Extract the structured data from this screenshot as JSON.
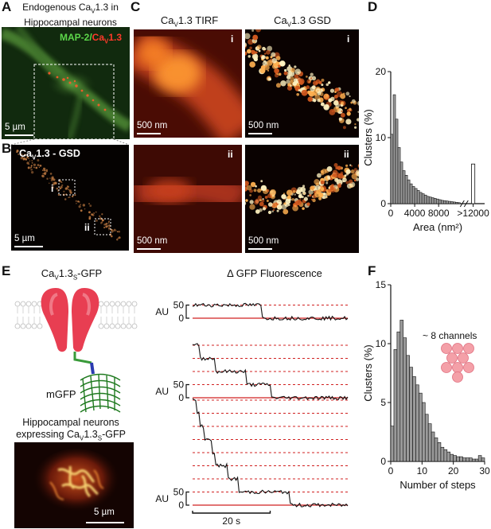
{
  "panel_letters": {
    "A": "A",
    "B": "B",
    "C": "C",
    "D": "D",
    "E": "E",
    "F": "F"
  },
  "panelA": {
    "title_pre": "Endogenous Ca",
    "title_sub": "V",
    "title_post": "1.3 in",
    "title_line2": "Hippocampal neurons",
    "label_green": "MAP-2/",
    "label_red_pre": "Ca",
    "label_red_sub": "V",
    "label_red_post": "1.3",
    "scalebar": "5 µm"
  },
  "panelB": {
    "label_pre": "Ca",
    "label_sub": "V",
    "label_post": "1.3 - GSD",
    "roi_i": "i",
    "roi_ii": "ii",
    "scalebar": "5 µm"
  },
  "panelC": {
    "col1_pre": "Ca",
    "col1_sub": "V",
    "col1_post": "1.3 TIRF",
    "col2_pre": "Ca",
    "col2_sub": "V",
    "col2_post": "1.3 GSD",
    "roman_i": "i",
    "roman_ii": "ii",
    "scalebar": "500 nm"
  },
  "panelE": {
    "title_pre": "Ca",
    "title_sub": "V",
    "title_mid": "1.3",
    "title_sub2": "S",
    "title_post": "-GFP",
    "mgfp": "mGFP",
    "neurons_line1": "Hippocampal neurons",
    "neurons_pre": "expressing Ca",
    "neurons_sub": "V",
    "neurons_mid": "1.3",
    "neurons_sub2": "S",
    "neurons_post": "-GFP",
    "scalebar": "5 µm",
    "traces_title": "Δ GFP Fluorescence",
    "au": "AU",
    "tick50": "50",
    "tick0": "0",
    "time_scale": "20 s"
  },
  "chart_data": [
    {
      "id": "panelD",
      "type": "bar",
      "ylabel": "Clusters (%)",
      "xlabel": "Area (nm²)",
      "yticks": [
        "0",
        "10",
        "20"
      ],
      "xticks": [
        "0",
        "4000",
        "8000",
        ">12000"
      ],
      "ylim": [
        0,
        20
      ],
      "xlim": [
        0,
        12000
      ],
      "bin_width": 400,
      "values": [
        10.5,
        16.5,
        12.8,
        8.5,
        6.3,
        5.0,
        4.3,
        3.6,
        3.0,
        2.6,
        2.3,
        2.0,
        1.7,
        1.5,
        1.3,
        1.1,
        1.0,
        0.9,
        0.8,
        0.7,
        0.6,
        0.5,
        0.45,
        0.4,
        0.35,
        0.3,
        0.25,
        0.2,
        0.15
      ],
      "overflow_value": 6.0
    },
    {
      "id": "panelF",
      "type": "bar",
      "ylabel": "Clusters (%)",
      "xlabel": "Number of steps",
      "annotation": "~ 8 channels",
      "yticks": [
        "0",
        "5",
        "10",
        "15"
      ],
      "xticks": [
        "0",
        "10",
        "20",
        "30"
      ],
      "ylim": [
        0,
        15
      ],
      "xlim": [
        0,
        30
      ],
      "x": [
        1,
        2,
        3,
        4,
        5,
        6,
        7,
        8,
        9,
        10,
        11,
        12,
        13,
        14,
        15,
        16,
        17,
        18,
        19,
        20,
        21,
        22,
        23,
        24,
        25,
        26,
        27,
        28,
        29,
        30
      ],
      "values": [
        3.0,
        9.5,
        11.0,
        12.0,
        10.5,
        9.0,
        8.0,
        7.2,
        6.5,
        5.8,
        5.0,
        4.0,
        3.2,
        2.5,
        2.0,
        1.6,
        1.2,
        1.0,
        0.8,
        0.6,
        0.5,
        0.4,
        0.4,
        0.3,
        0.3,
        0.3,
        0.2,
        0.2,
        0.5,
        0.3
      ]
    },
    {
      "id": "panelE-traces",
      "type": "line",
      "time_scale_s": 20,
      "traces": [
        {
          "levels": [
            50,
            0
          ],
          "step_times_s": [
            18
          ]
        },
        {
          "levels": [
            200,
            150,
            100,
            50,
            0
          ],
          "step_times_s": [
            2,
            6,
            14,
            20
          ]
        },
        {
          "levels": [
            400,
            350,
            300,
            250,
            200,
            150,
            100,
            50,
            0
          ],
          "step_times_s": [
            1,
            2,
            3,
            5,
            6,
            9,
            12,
            25
          ]
        }
      ]
    }
  ]
}
